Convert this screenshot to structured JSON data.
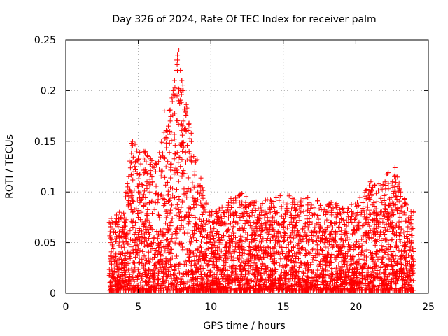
{
  "chart_data": {
    "type": "scatter",
    "title": "Day 326 of 2024, Rate Of TEC Index for receiver palm",
    "xlabel": "GPS time / hours",
    "ylabel": "ROTI / TECUs",
    "xlim": [
      0,
      25
    ],
    "ylim": [
      0,
      0.25
    ],
    "xticks": [
      0,
      5,
      10,
      15,
      20,
      25
    ],
    "yticks": [
      0,
      0.05,
      0.1,
      0.15,
      0.2,
      0.25
    ],
    "xtick_labels": [
      "0",
      "5",
      "10",
      "15",
      "20",
      "25"
    ],
    "ytick_labels": [
      "0",
      "0.05",
      "0.1",
      "0.15",
      "0.2",
      "0.25"
    ],
    "grid": true,
    "marker": "+",
    "color": "#ff0000",
    "series": [
      {
        "x": [
          3.0,
          3.1,
          3.2,
          3.3,
          3.5,
          3.7,
          3.9,
          4.1,
          4.3,
          4.5,
          4.6,
          4.7,
          4.8,
          5.0,
          5.2,
          5.4,
          5.5,
          5.6,
          5.8,
          6.0,
          6.2,
          6.4,
          6.6,
          6.8,
          7.0,
          7.2,
          7.4,
          7.5,
          7.6,
          7.7,
          7.8,
          7.9,
          8.0,
          8.1,
          8.2,
          8.3,
          8.5,
          8.7,
          8.9,
          9.1,
          9.3,
          9.5,
          9.7,
          9.9,
          10.2,
          10.5,
          10.8,
          11.1,
          11.4,
          11.7,
          12.0,
          12.3,
          12.6,
          12.9,
          13.2,
          13.5,
          13.8,
          14.1,
          14.4,
          14.7,
          15.0,
          15.3,
          15.6,
          15.9,
          16.2,
          16.5,
          16.8,
          17.1,
          17.4,
          17.7,
          18.0,
          18.3,
          18.6,
          18.9,
          19.2,
          19.5,
          19.8,
          20.1,
          20.4,
          20.7,
          21.0,
          21.3,
          21.6,
          21.9,
          22.2,
          22.5,
          22.8,
          23.1,
          23.4,
          23.7,
          24.0,
          4.6,
          4.7,
          5.5,
          7.6,
          7.7,
          7.8,
          7.9,
          8.0,
          8.1,
          22.7,
          23.0
        ],
        "y": [
          0.07,
          0.05,
          0.07,
          0.06,
          0.07,
          0.08,
          0.06,
          0.07,
          0.09,
          0.1,
          0.15,
          0.12,
          0.13,
          0.1,
          0.08,
          0.14,
          0.12,
          0.11,
          0.1,
          0.11,
          0.12,
          0.13,
          0.15,
          0.18,
          0.16,
          0.17,
          0.2,
          0.21,
          0.22,
          0.23,
          0.19,
          0.2,
          0.21,
          0.17,
          0.18,
          0.16,
          0.14,
          0.13,
          0.12,
          0.1,
          0.09,
          0.08,
          0.09,
          0.08,
          0.07,
          0.08,
          0.07,
          0.08,
          0.09,
          0.08,
          0.09,
          0.08,
          0.07,
          0.06,
          0.07,
          0.08,
          0.07,
          0.08,
          0.07,
          0.06,
          0.09,
          0.08,
          0.06,
          0.07,
          0.08,
          0.06,
          0.07,
          0.06,
          0.07,
          0.06,
          0.08,
          0.07,
          0.06,
          0.07,
          0.06,
          0.07,
          0.07,
          0.09,
          0.08,
          0.06,
          0.11,
          0.08,
          0.07,
          0.06,
          0.08,
          0.07,
          0.06,
          0.1,
          0.09,
          0.07,
          0.08,
          0.15,
          0.12,
          0.14,
          0.23,
          0.235,
          0.24,
          0.22,
          0.21,
          0.2,
          0.124,
          0.103
        ],
        "y_envelope_max": [
          {
            "x": 3.0,
            "y": 0.075
          },
          {
            "x": 4.0,
            "y": 0.08
          },
          {
            "x": 4.5,
            "y": 0.15
          },
          {
            "x": 5.5,
            "y": 0.14
          },
          {
            "x": 6.5,
            "y": 0.14
          },
          {
            "x": 7.0,
            "y": 0.18
          },
          {
            "x": 7.5,
            "y": 0.2
          },
          {
            "x": 7.8,
            "y": 0.247
          },
          {
            "x": 8.5,
            "y": 0.17
          },
          {
            "x": 9.0,
            "y": 0.14
          },
          {
            "x": 9.5,
            "y": 0.1
          },
          {
            "x": 10.0,
            "y": 0.08
          },
          {
            "x": 12.0,
            "y": 0.1
          },
          {
            "x": 13.0,
            "y": 0.09
          },
          {
            "x": 15.0,
            "y": 0.1
          },
          {
            "x": 18.0,
            "y": 0.09
          },
          {
            "x": 20.0,
            "y": 0.09
          },
          {
            "x": 21.0,
            "y": 0.11
          },
          {
            "x": 22.7,
            "y": 0.124
          },
          {
            "x": 23.5,
            "y": 0.09
          },
          {
            "x": 24.0,
            "y": 0.08
          }
        ]
      }
    ]
  }
}
